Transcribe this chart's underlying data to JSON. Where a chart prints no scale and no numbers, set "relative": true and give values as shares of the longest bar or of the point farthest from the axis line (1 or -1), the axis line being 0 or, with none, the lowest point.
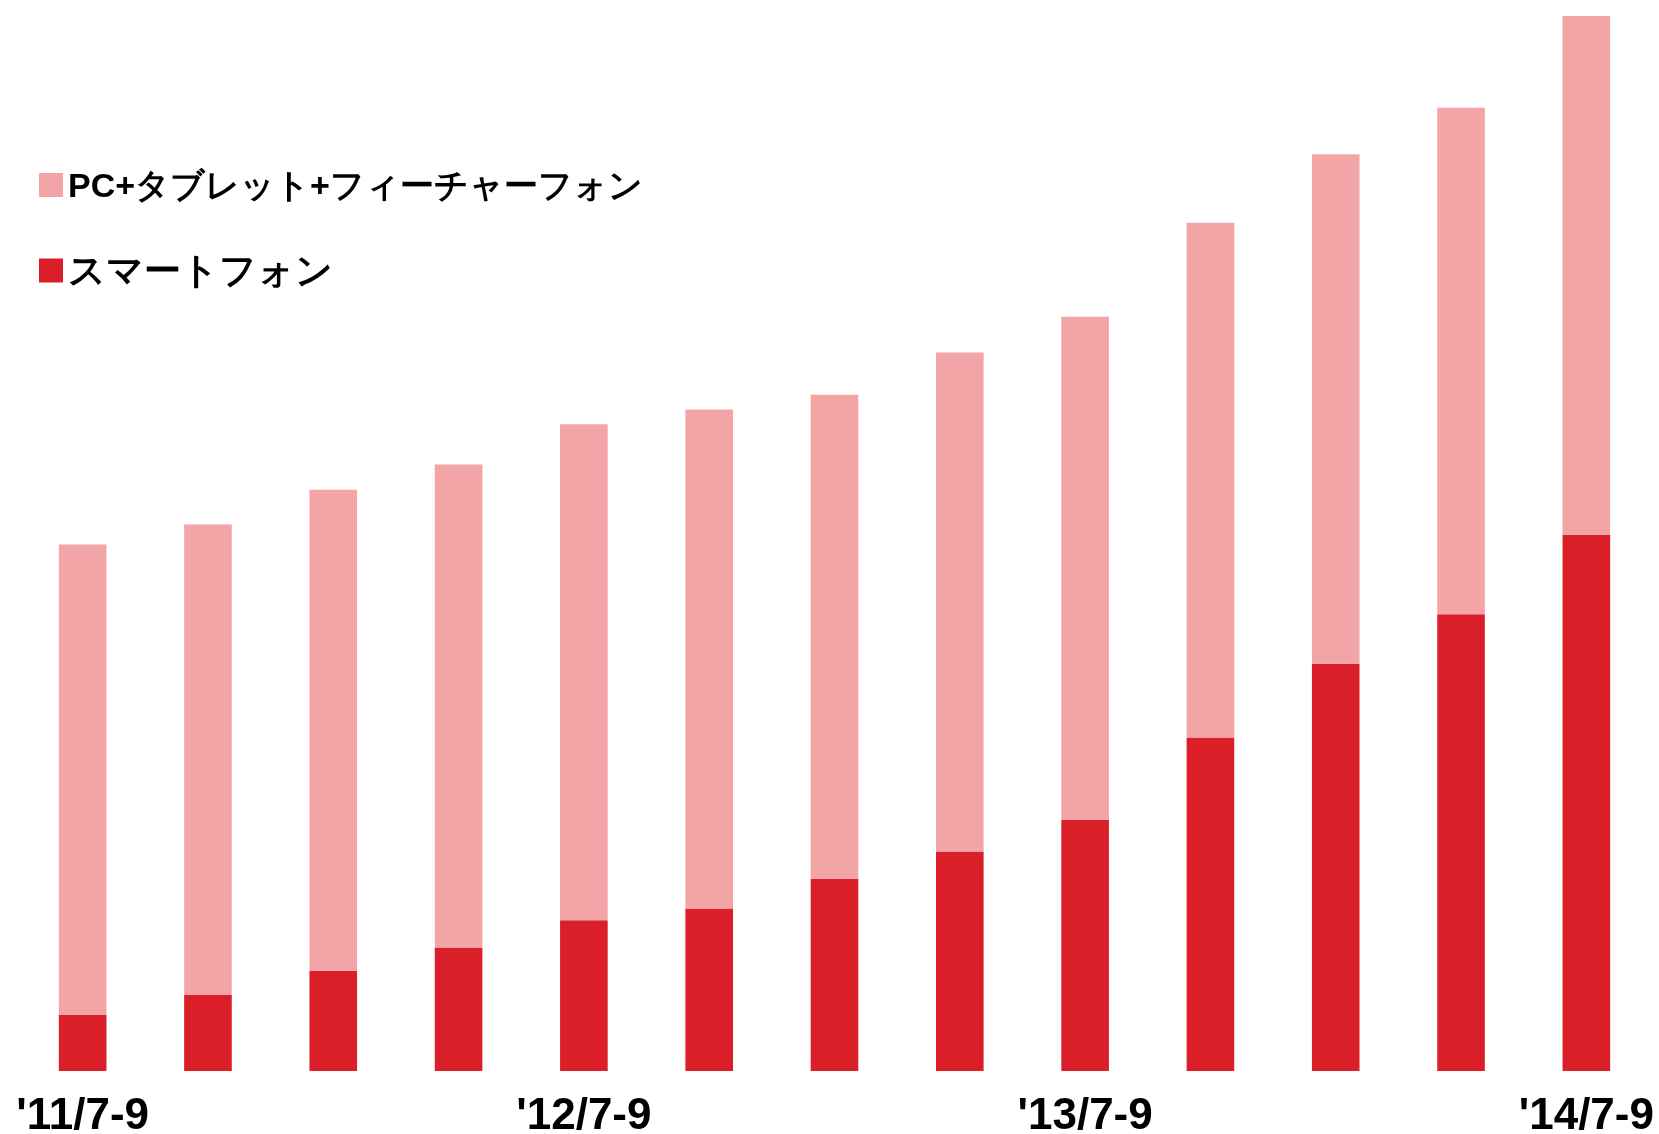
{
  "chart_data": {
    "type": "bar",
    "stacked": true,
    "relative": true,
    "legend": "top left",
    "categories": [
      "'11/7-9",
      null,
      null,
      null,
      "'12/7-9",
      null,
      null,
      null,
      "'13/7-9",
      null,
      null,
      null,
      "'14/7-9"
    ],
    "series": [
      {
        "name": "スマートフォン",
        "color": "#da1f28",
        "values": [
          0.053,
          0.072,
          0.095,
          0.117,
          0.143,
          0.154,
          0.182,
          0.208,
          0.238,
          0.316,
          0.386,
          0.433,
          0.508
        ]
      },
      {
        "name": "PC+タブレット+フィーチャーフォン",
        "color": "#f2a4a7",
        "values": [
          0.446,
          0.446,
          0.456,
          0.458,
          0.47,
          0.473,
          0.459,
          0.473,
          0.477,
          0.488,
          0.483,
          0.48,
          0.492
        ]
      }
    ]
  }
}
